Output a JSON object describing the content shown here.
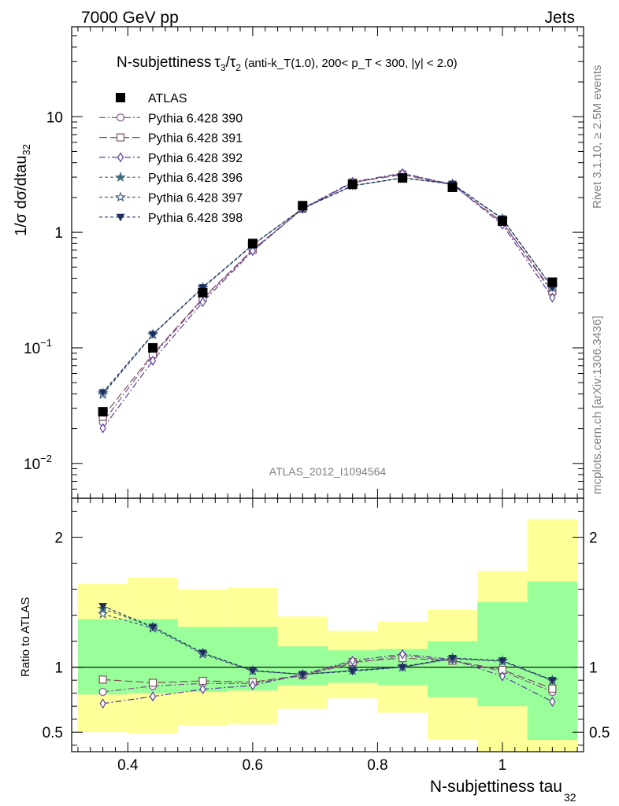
{
  "header": {
    "energy_label": "7000 GeV pp",
    "category_label": "Jets"
  },
  "side_labels": {
    "rivet": "Rivet 3.1.10, ≥ 2.5M events",
    "mcplots": "mcplots.cern.ch [arXiv:1306.3436]"
  },
  "chart_data": {
    "type": "line",
    "title_main": "N-subjettiness",
    "title_sub": "(anti-k_T(1.0), 200< p_T < 300, |y| < 2.0)",
    "analysis_label": "ATLAS_2012_I1094564",
    "xlabel": "N-subjettiness tau",
    "xlabel_sub": "32",
    "ylabel": "1/σ dσ/dtau",
    "ylabel_sub": "32",
    "ratio_ylabel": "Ratio to ATLAS",
    "xlim": [
      0.31,
      1.13
    ],
    "ylim": [
      0.005,
      60
    ],
    "yscale": "log",
    "ratio_ylim": [
      0.35,
      2.3
    ],
    "x_ticks": [
      "0.4",
      "0.6",
      "0.8",
      "1"
    ],
    "y_ticks": [
      "10^-2",
      "10^-1",
      "1",
      "10"
    ],
    "ratio_ticks": [
      "0.5",
      "1",
      "2"
    ],
    "x": [
      0.36,
      0.44,
      0.52,
      0.6,
      0.68,
      0.76,
      0.84,
      0.92,
      1.0,
      1.08
    ],
    "bin_edges": [
      0.32,
      0.4,
      0.48,
      0.56,
      0.64,
      0.72,
      0.8,
      0.88,
      0.96,
      1.04,
      1.12
    ],
    "data": {
      "name": "ATLAS",
      "values": [
        0.028,
        0.1,
        0.3,
        0.8,
        1.7,
        2.6,
        2.95,
        2.45,
        1.25,
        0.37
      ]
    },
    "bands": {
      "inner": [
        [
          0.79,
          1.37
        ],
        [
          0.8,
          1.37
        ],
        [
          0.81,
          1.31
        ],
        [
          0.82,
          1.31
        ],
        [
          0.86,
          1.16
        ],
        [
          0.88,
          1.13
        ],
        [
          0.86,
          1.14
        ],
        [
          0.77,
          1.2
        ],
        [
          0.7,
          1.5
        ],
        [
          0.44,
          1.66
        ]
      ],
      "outer": [
        [
          0.5,
          1.64
        ],
        [
          0.49,
          1.69
        ],
        [
          0.55,
          1.6
        ],
        [
          0.56,
          1.61
        ],
        [
          0.68,
          1.39
        ],
        [
          0.76,
          1.28
        ],
        [
          0.65,
          1.35
        ],
        [
          0.44,
          1.44
        ],
        [
          0.32,
          1.74
        ],
        [
          0.32,
          2.14
        ]
      ]
    },
    "series": [
      {
        "name": "Pythia 6.428 390",
        "color": "#7f4f8f",
        "marker": "circle-open",
        "dash": "8,3,2,3",
        "ratio": [
          0.81,
          0.855,
          0.875,
          0.875,
          0.935,
          1.03,
          1.09,
          1.05,
          0.97,
          0.81
        ]
      },
      {
        "name": "Pythia 6.428 391",
        "color": "#7f4f5f",
        "marker": "square-open",
        "dash": "10,4",
        "ratio": [
          0.905,
          0.88,
          0.895,
          0.885,
          0.94,
          1.04,
          1.07,
          1.05,
          0.98,
          0.835
        ]
      },
      {
        "name": "Pythia 6.428 392",
        "color": "#5a3f9f",
        "marker": "diamond-open",
        "dash": "8,3,2,3",
        "ratio": [
          0.72,
          0.775,
          0.83,
          0.86,
          0.945,
          1.05,
          1.1,
          1.06,
          0.93,
          0.735
        ]
      },
      {
        "name": "Pythia 6.428 396",
        "color": "#3f6f7f",
        "marker": "star-filled",
        "dash": "4,3",
        "ratio": [
          1.45,
          1.31,
          1.11,
          0.975,
          0.945,
          0.975,
          1.005,
          1.07,
          1.05,
          0.9
        ]
      },
      {
        "name": "Pythia 6.428 397",
        "color": "#3f5f7f",
        "marker": "star-open",
        "dash": "4,3",
        "ratio": [
          1.41,
          1.3,
          1.1,
          0.97,
          0.945,
          0.975,
          1.0,
          1.065,
          1.045,
          0.895
        ]
      },
      {
        "name": "Pythia 6.428 398",
        "color": "#1f2f5f",
        "marker": "triangle-down-filled",
        "dash": "4,3",
        "ratio": [
          1.47,
          1.31,
          1.11,
          0.975,
          0.945,
          0.97,
          1.0,
          1.07,
          1.05,
          0.9
        ]
      }
    ]
  }
}
